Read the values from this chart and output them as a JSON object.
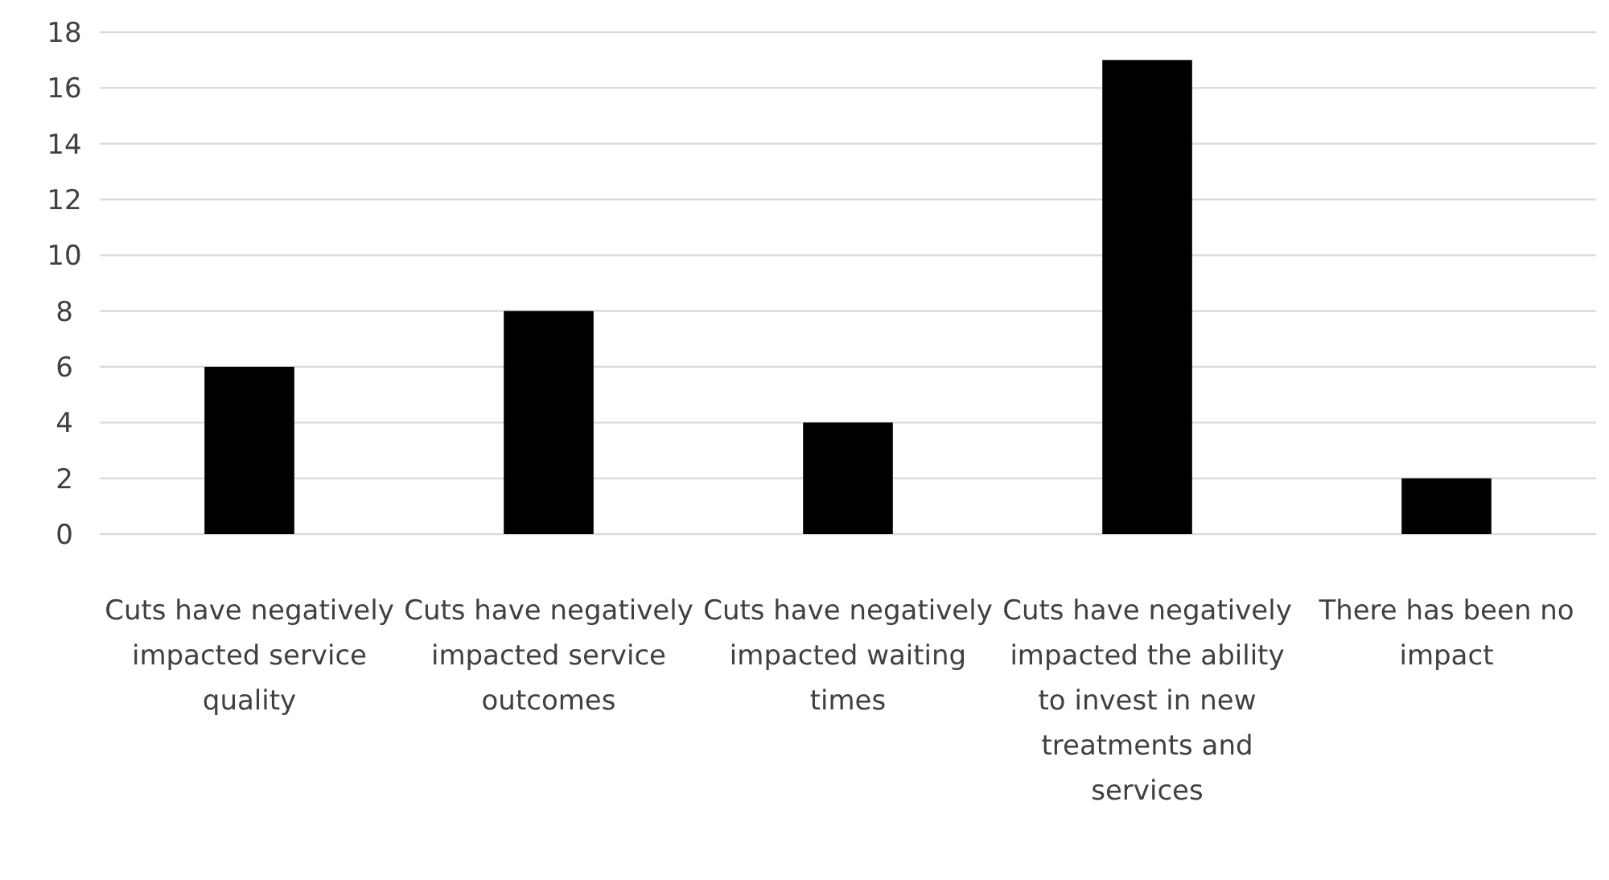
{
  "chart_data": {
    "type": "bar",
    "categories": [
      "Cuts have negatively impacted service quality",
      "Cuts have negatively impacted service outcomes",
      "Cuts have negatively impacted waiting times",
      "Cuts have negatively impacted the ability to invest in new treatments and services",
      "There has been no impact"
    ],
    "values": [
      6,
      8,
      4,
      17,
      2
    ],
    "color": "#000000",
    "ylim": [
      0,
      18
    ],
    "yticks": [
      0,
      2,
      4,
      6,
      8,
      10,
      12,
      14,
      16,
      18
    ],
    "grid": "y"
  }
}
